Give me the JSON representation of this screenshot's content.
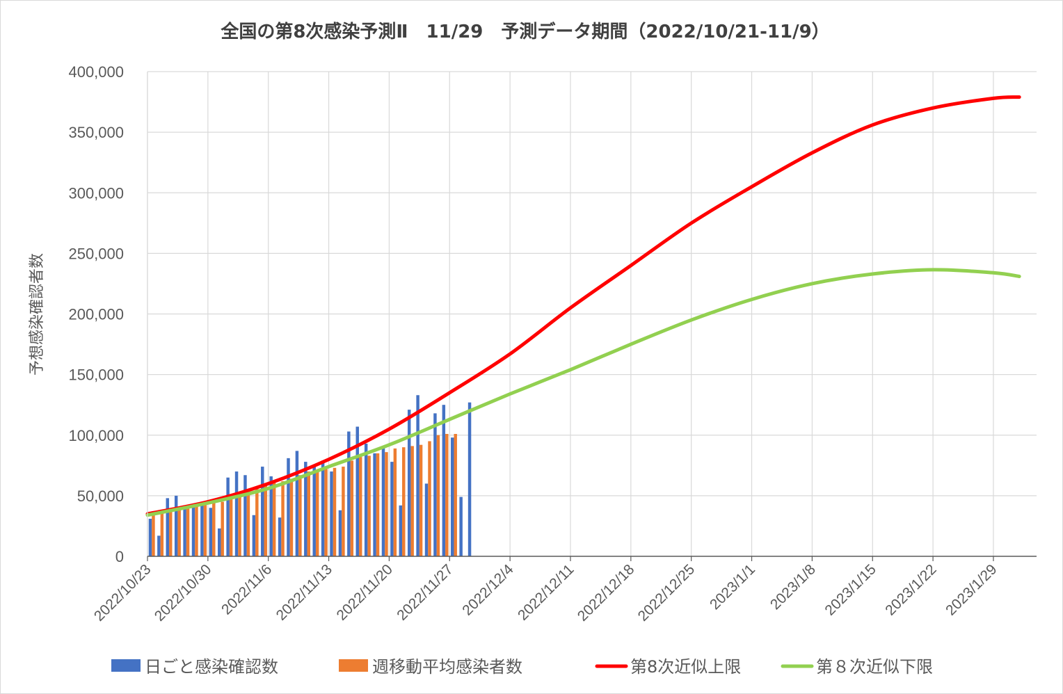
{
  "chart_data": {
    "type": "bar+line",
    "title": "全国の第8次感染予測Ⅱ　11/29　予測データ期間（2022/10/21-11/9）",
    "ylabel": "予想感染確認者数",
    "xlabel": "",
    "ylim": [
      0,
      400000
    ],
    "yticks": [
      0,
      50000,
      100000,
      150000,
      200000,
      250000,
      300000,
      350000,
      400000
    ],
    "ytick_labels": [
      "0",
      "50,000",
      "100,000",
      "150,000",
      "200,000",
      "250,000",
      "300,000",
      "350,000",
      "400,000"
    ],
    "x_start": "2022/10/23",
    "x_end": "2023/2/3",
    "xtick_labels": [
      "2022/10/23",
      "2022/10/30",
      "2022/11/6",
      "2022/11/13",
      "2022/11/20",
      "2022/11/27",
      "2022/12/4",
      "2022/12/11",
      "2022/12/18",
      "2022/12/25",
      "2023/1/1",
      "2023/1/8",
      "2023/1/15",
      "2023/1/22",
      "2023/1/29"
    ],
    "grid": true,
    "legend_position": "bottom",
    "series": [
      {
        "name": "日ごと感染確認数",
        "kind": "bar",
        "color": "#4472c4",
        "values": [
          31000,
          17000,
          48000,
          50000,
          42000,
          41000,
          43000,
          40000,
          23000,
          65000,
          70000,
          67000,
          34000,
          74000,
          66000,
          32000,
          81000,
          87000,
          78000,
          74000,
          79000,
          70000,
          38000,
          103000,
          107000,
          93000,
          85000,
          90000,
          78000,
          42000,
          121000,
          133000,
          60000,
          118000,
          125000,
          98000,
          49000,
          127000
        ]
      },
      {
        "name": "週移動平均感染者数",
        "kind": "bar",
        "color": "#ed7d31",
        "values": [
          34000,
          36000,
          38000,
          40000,
          41000,
          41000,
          43000,
          44000,
          45000,
          48000,
          51000,
          55000,
          57000,
          60000,
          62000,
          62000,
          64000,
          67000,
          70000,
          71000,
          72000,
          73000,
          74000,
          79000,
          82000,
          83000,
          85000,
          86000,
          89000,
          90000,
          91000,
          92000,
          95000,
          100000,
          101000,
          101000
        ]
      },
      {
        "name": "第8次近似上限",
        "kind": "line",
        "color": "#ff0000",
        "days": [
          0,
          7,
          14,
          21,
          28,
          35,
          42,
          49,
          56,
          63,
          70,
          77,
          84,
          91,
          98,
          101
        ],
        "values": [
          35000,
          45000,
          60000,
          80000,
          105000,
          135000,
          167000,
          205000,
          240000,
          275000,
          305000,
          333000,
          356000,
          370000,
          378000,
          379000
        ]
      },
      {
        "name": "第８次近似下限",
        "kind": "line",
        "color": "#92d050",
        "days": [
          0,
          7,
          14,
          21,
          28,
          35,
          42,
          49,
          56,
          63,
          70,
          77,
          84,
          91,
          98,
          101
        ],
        "values": [
          34000,
          44000,
          56000,
          74000,
          92000,
          113000,
          134000,
          154000,
          175000,
          195000,
          212000,
          225000,
          233000,
          236500,
          234000,
          231000
        ]
      }
    ]
  }
}
